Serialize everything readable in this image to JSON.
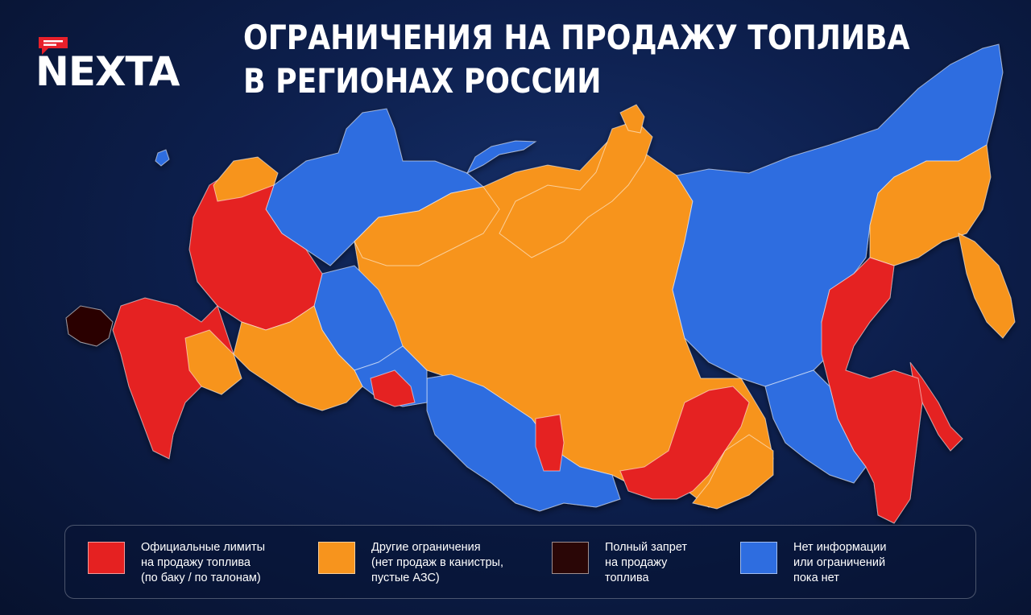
{
  "brand": {
    "name": "NEXTA"
  },
  "headline": {
    "line1": "ОГРАНИЧЕНИЯ НА ПРОДАЖУ ТОПЛИВА",
    "line2": "В РЕГИОНАХ РОССИИ"
  },
  "colors": {
    "background": "#0d1f4d",
    "official_limits": "#e52121",
    "other_restrictions": "#f7941d",
    "full_ban": "#2a0606",
    "no_info": "#2e6de0",
    "brand_accent": "#e8202a"
  },
  "legend": [
    {
      "category": "official_limits",
      "lines": [
        "Официальные лимиты",
        "на продажу топлива",
        "(по баку / по талонам)"
      ]
    },
    {
      "category": "other_restrictions",
      "lines": [
        "Другие ограничения",
        "(нет продаж в канистры,",
        "пустые АЗС)"
      ]
    },
    {
      "category": "full_ban",
      "lines": [
        "Полный запрет",
        "на продажу",
        "топлива"
      ]
    },
    {
      "category": "no_info",
      "lines": [
        "Нет информации",
        "или ограничений",
        "пока нет"
      ]
    }
  ],
  "map": {
    "regions": [
      {
        "id": "northwest-blue",
        "category": "no_info"
      },
      {
        "id": "central-west",
        "category": "official_limits"
      },
      {
        "id": "volga",
        "category": "other_restrictions"
      },
      {
        "id": "south",
        "category": "official_limits"
      },
      {
        "id": "crimea",
        "category": "full_ban"
      },
      {
        "id": "ural-blue",
        "category": "no_info"
      },
      {
        "id": "siberia",
        "category": "other_restrictions"
      },
      {
        "id": "yakutia",
        "category": "no_info"
      },
      {
        "id": "far-east-red",
        "category": "official_limits"
      },
      {
        "id": "kamchatka",
        "category": "other_restrictions"
      },
      {
        "id": "transbaikal",
        "category": "official_limits"
      }
    ]
  }
}
